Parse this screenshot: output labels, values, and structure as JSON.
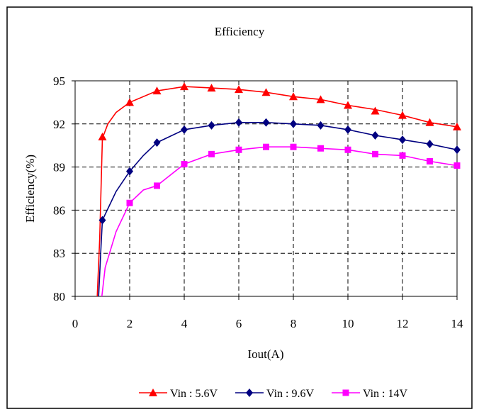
{
  "chart_data": {
    "type": "line",
    "title": "Efficiency",
    "xlabel": "Iout(A)",
    "ylabel": "Efficiency(%)",
    "xlim": [
      0,
      14
    ],
    "ylim": [
      80,
      95
    ],
    "xticks": [
      0,
      2,
      4,
      6,
      8,
      10,
      12,
      14
    ],
    "yticks": [
      80,
      83,
      86,
      89,
      92,
      95
    ],
    "grid": true,
    "legend_position": "bottom",
    "series": [
      {
        "name": "Vin : 5.6V",
        "color": "#ff0000",
        "marker": "triangle",
        "line": [
          [
            0.8,
            79.5
          ],
          [
            0.9,
            84.0
          ],
          [
            1.0,
            91.0
          ],
          [
            1.2,
            92.0
          ],
          [
            1.5,
            92.8
          ],
          [
            2.0,
            93.5
          ],
          [
            3.0,
            94.3
          ],
          [
            4.0,
            94.6
          ],
          [
            5.0,
            94.5
          ],
          [
            6.0,
            94.4
          ],
          [
            7.0,
            94.2
          ],
          [
            8.0,
            93.9
          ],
          [
            9.0,
            93.7
          ],
          [
            10.0,
            93.3
          ],
          [
            11.0,
            93.0
          ],
          [
            12.0,
            92.6
          ],
          [
            13.0,
            92.1
          ],
          [
            14.0,
            91.8
          ]
        ],
        "points": [
          [
            1,
            91.1
          ],
          [
            2,
            93.5
          ],
          [
            3,
            94.3
          ],
          [
            4,
            94.6
          ],
          [
            5,
            94.5
          ],
          [
            6,
            94.4
          ],
          [
            7,
            94.2
          ],
          [
            8,
            93.9
          ],
          [
            9,
            93.7
          ],
          [
            10,
            93.3
          ],
          [
            11,
            92.9
          ],
          [
            12,
            92.6
          ],
          [
            13,
            92.1
          ],
          [
            14,
            91.8
          ]
        ]
      },
      {
        "name": "Vin : 9.6V",
        "color": "#000080",
        "marker": "diamond",
        "line": [
          [
            0.85,
            79.5
          ],
          [
            0.95,
            83.5
          ],
          [
            1.0,
            85.3
          ],
          [
            1.5,
            87.3
          ],
          [
            2.0,
            88.7
          ],
          [
            2.5,
            89.8
          ],
          [
            3.0,
            90.7
          ],
          [
            4.0,
            91.6
          ],
          [
            5.0,
            91.9
          ],
          [
            6.0,
            92.1
          ],
          [
            7.0,
            92.1
          ],
          [
            8.0,
            92.0
          ],
          [
            9.0,
            91.9
          ],
          [
            10.0,
            91.6
          ],
          [
            11.0,
            91.2
          ],
          [
            12.0,
            90.9
          ],
          [
            13.0,
            90.6
          ],
          [
            14.0,
            90.2
          ]
        ],
        "points": [
          [
            1,
            85.3
          ],
          [
            2,
            88.7
          ],
          [
            3,
            90.7
          ],
          [
            4,
            91.6
          ],
          [
            5,
            91.9
          ],
          [
            6,
            92.1
          ],
          [
            7,
            92.1
          ],
          [
            8,
            92.0
          ],
          [
            9,
            91.9
          ],
          [
            10,
            91.6
          ],
          [
            11,
            91.2
          ],
          [
            12,
            90.9
          ],
          [
            13,
            90.6
          ],
          [
            14,
            90.2
          ]
        ]
      },
      {
        "name": "Vin : 14V",
        "color": "#ff00ff",
        "marker": "square",
        "line": [
          [
            0.95,
            79.5
          ],
          [
            1.1,
            82.0
          ],
          [
            1.5,
            84.5
          ],
          [
            2.0,
            86.5
          ],
          [
            2.5,
            87.4
          ],
          [
            3.0,
            87.7
          ],
          [
            4.0,
            89.2
          ],
          [
            5.0,
            89.9
          ],
          [
            6.0,
            90.2
          ],
          [
            7.0,
            90.4
          ],
          [
            8.0,
            90.4
          ],
          [
            9.0,
            90.3
          ],
          [
            10.0,
            90.2
          ],
          [
            11.0,
            89.9
          ],
          [
            12.0,
            89.8
          ],
          [
            13.0,
            89.4
          ],
          [
            14.0,
            89.1
          ]
        ],
        "points": [
          [
            2,
            86.5
          ],
          [
            3,
            87.7
          ],
          [
            4,
            89.2
          ],
          [
            5,
            89.9
          ],
          [
            6,
            90.2
          ],
          [
            7,
            90.4
          ],
          [
            8,
            90.4
          ],
          [
            9,
            90.3
          ],
          [
            10,
            90.2
          ],
          [
            11,
            89.9
          ],
          [
            12,
            89.8
          ],
          [
            13,
            89.4
          ],
          [
            14,
            89.1
          ]
        ]
      }
    ]
  }
}
